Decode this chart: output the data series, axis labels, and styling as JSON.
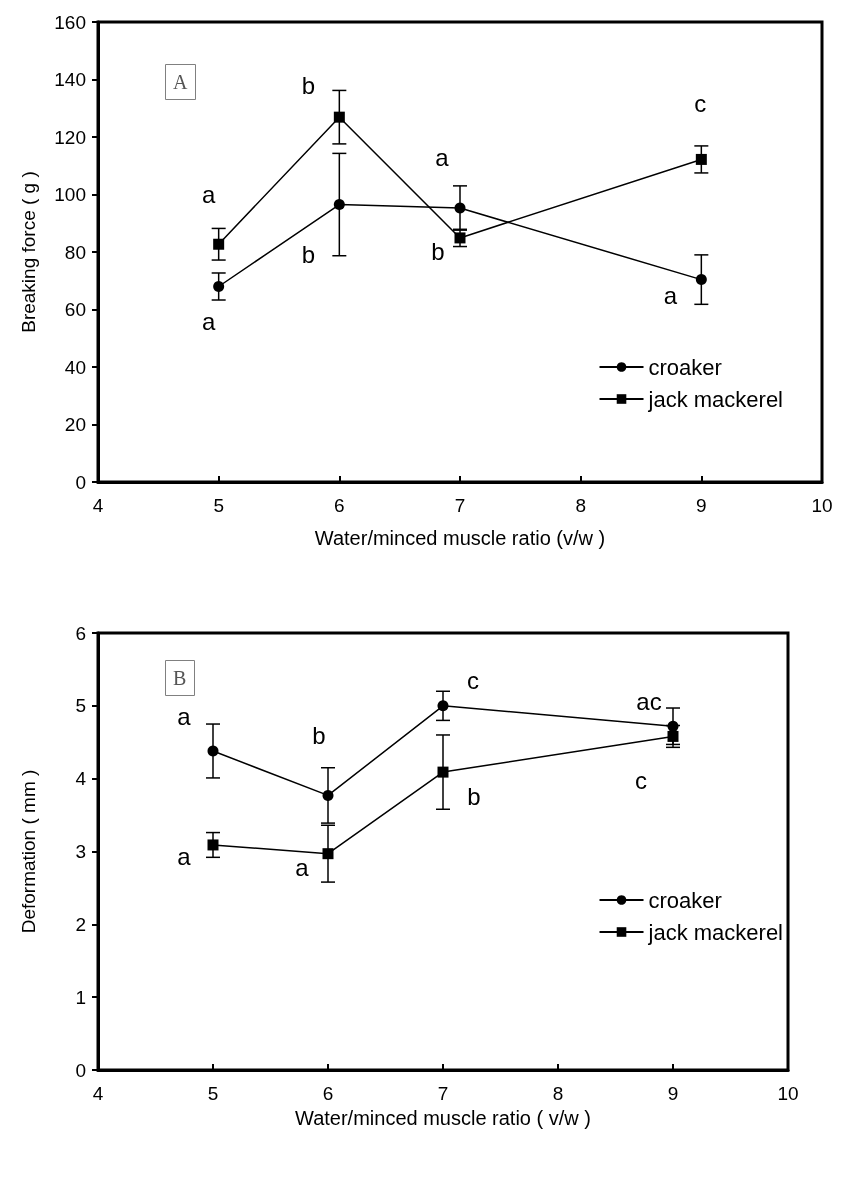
{
  "chart_data": [
    {
      "type": "line",
      "title": "A",
      "xlabel": "Water/minced muscle ratio (v/w )",
      "ylabel": "Breaking force ( g )",
      "x": [
        5,
        6,
        7,
        9
      ],
      "xlim": [
        4,
        10
      ],
      "xticks": [
        4,
        5,
        6,
        7,
        8,
        9,
        10
      ],
      "ylim": [
        0,
        160
      ],
      "yticks": [
        0,
        20,
        40,
        60,
        80,
        100,
        120,
        140,
        160
      ],
      "series": [
        {
          "name": "croaker",
          "color": "#000000",
          "marker": "circle",
          "values": [
            68,
            96.5,
            95.3,
            70.4
          ],
          "errors": [
            4.7,
            17.8,
            7.7,
            8.6
          ]
        },
        {
          "name": "jack mackerel",
          "color": "#000000",
          "marker": "square",
          "values": [
            82.7,
            126.9,
            84.9,
            112.2
          ],
          "errors": [
            5.5,
            9.3,
            3,
            4.7
          ]
        }
      ],
      "annotations": [
        {
          "text": "a",
          "x": 5,
          "y": 82.7
        },
        {
          "text": "a",
          "x": 5,
          "y": 68
        },
        {
          "text": "b",
          "x": 6,
          "y": 126.9
        },
        {
          "text": "b",
          "x": 6,
          "y": 96.5
        },
        {
          "text": "a",
          "x": 7,
          "y": 95.3
        },
        {
          "text": "b",
          "x": 7,
          "y": 84.9
        },
        {
          "text": "c",
          "x": 9,
          "y": 112.2
        },
        {
          "text": "a",
          "x": 9,
          "y": 70.4
        }
      ],
      "legend": "bottom right",
      "grid": false,
      "line_style": "solid"
    },
    {
      "type": "line",
      "title": "B",
      "xlabel": "Water/minced muscle ratio ( v/w )",
      "ylabel": "Deformation ( mm )",
      "x": [
        5,
        6,
        7,
        9
      ],
      "xlim": [
        4,
        10
      ],
      "xticks": [
        4,
        5,
        6,
        7,
        8,
        9,
        10
      ],
      "ylim": [
        0,
        6
      ],
      "yticks": [
        0,
        1,
        2,
        3,
        4,
        5,
        6
      ],
      "series": [
        {
          "name": "croaker",
          "color": "#000000",
          "marker": "circle",
          "values": [
            4.38,
            3.77,
            5.0,
            4.72
          ],
          "errors": [
            0.37,
            0.38,
            0.2,
            0.25
          ]
        },
        {
          "name": "jack mackerel",
          "color": "#000000",
          "marker": "square",
          "values": [
            3.09,
            2.97,
            4.09,
            4.58
          ],
          "errors": [
            0.17,
            0.39,
            0.51,
            0.15
          ]
        }
      ],
      "annotations": [
        {
          "text": "a",
          "x": 5,
          "y": 4.38
        },
        {
          "text": "b",
          "x": 6,
          "y": 3.77
        },
        {
          "text": "c",
          "x": 7,
          "y": 5.0
        },
        {
          "text": "ac",
          "x": 9,
          "y": 4.72
        },
        {
          "text": "a",
          "x": 5,
          "y": 3.09
        },
        {
          "text": "a",
          "x": 6,
          "y": 2.97
        },
        {
          "text": "b",
          "x": 7,
          "y": 4.09
        },
        {
          "text": "c",
          "x": 9,
          "y": 4.58
        }
      ],
      "legend": "bottom right",
      "grid": false,
      "line_style": "solid"
    }
  ]
}
